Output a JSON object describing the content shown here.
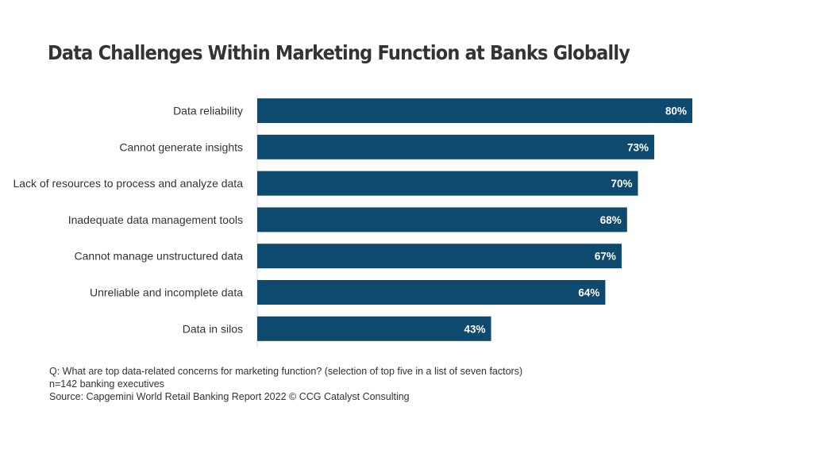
{
  "chart_data": {
    "type": "bar",
    "orientation": "horizontal",
    "title": "Data Challenges Within Marketing Function at Banks Globally",
    "categories": [
      "Data reliability",
      "Cannot generate insights",
      "Lack of resources to process and analyze data",
      "Inadequate data management tools",
      "Cannot manage unstructured data",
      "Unreliable and incomplete data",
      "Data in silos"
    ],
    "values": [
      80,
      73,
      70,
      68,
      67,
      64,
      43
    ],
    "value_labels": [
      "80%",
      "73%",
      "70%",
      "68%",
      "67%",
      "64%",
      "43%"
    ],
    "xlim": [
      0,
      80
    ],
    "grid": false,
    "legend": "none",
    "bar_color": "#0d4a6e"
  },
  "notes": {
    "question": "Q: What are top data-related concerns for marketing function? (selection of top five in a list of seven factors)",
    "sample": "n=142 banking executives",
    "source": "Source: Capgemini World Retail Banking Report 2022 © CCG Catalyst Consulting"
  }
}
